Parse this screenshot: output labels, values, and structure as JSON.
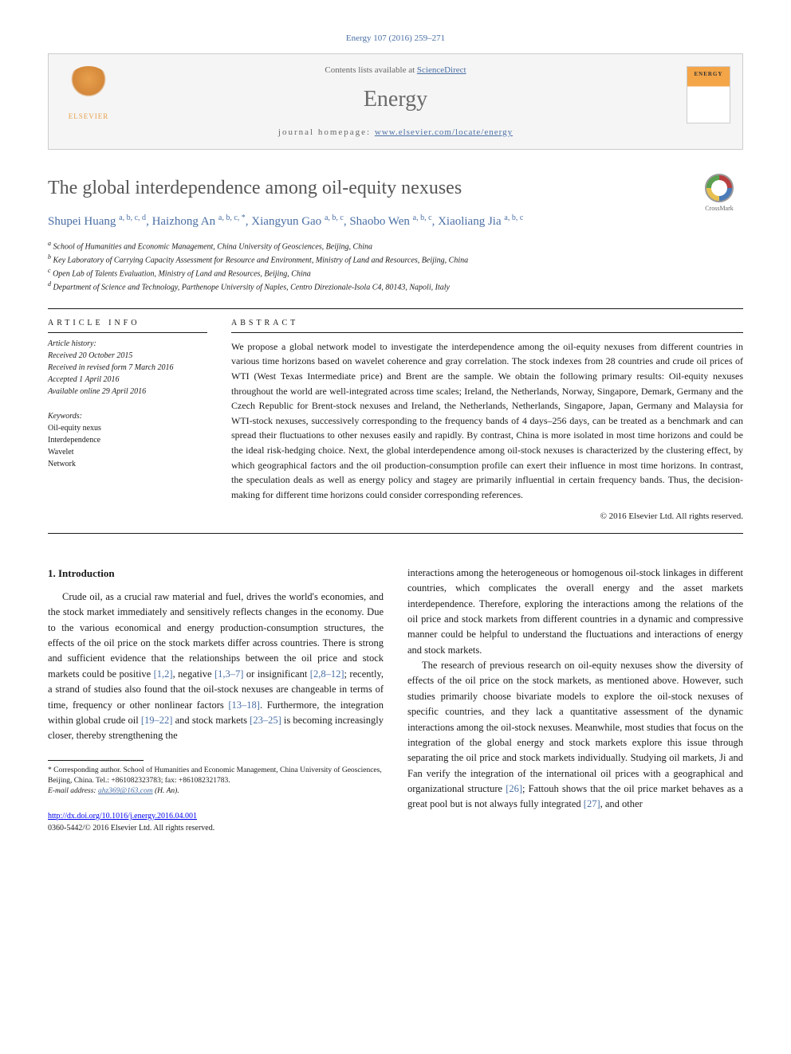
{
  "citation": "Energy 107 (2016) 259–271",
  "header": {
    "contents_prefix": "Contents lists available at ",
    "contents_link": "ScienceDirect",
    "journal": "Energy",
    "homepage_prefix": "journal homepage: ",
    "homepage_url": "www.elsevier.com/locate/energy",
    "publisher_logo": "ELSEVIER",
    "cover_label": "ENERGY"
  },
  "crossmark_label": "CrossMark",
  "title": "The global interdependence among oil-equity nexuses",
  "authors_html": "Shupei Huang <sup>a, b, c, d</sup>, Haizhong An <sup>a, b, c, *</sup>, Xiangyun Gao <sup>a, b, c</sup>, Shaobo Wen <sup>a, b, c</sup>, Xiaoliang Jia <sup>a, b, c</sup>",
  "affiliations": {
    "a": "School of Humanities and Economic Management, China University of Geosciences, Beijing, China",
    "b": "Key Laboratory of Carrying Capacity Assessment for Resource and Environment, Ministry of Land and Resources, Beijing, China",
    "c": "Open Lab of Talents Evaluation, Ministry of Land and Resources, Beijing, China",
    "d": "Department of Science and Technology, Parthenope University of Naples, Centro Direzionale-Isola C4, 80143, Napoli, Italy"
  },
  "article_info_label": "ARTICLE INFO",
  "abstract_label": "ABSTRACT",
  "history_label": "Article history:",
  "history": {
    "received": "Received 20 October 2015",
    "revised": "Received in revised form 7 March 2016",
    "accepted": "Accepted 1 April 2016",
    "online": "Available online 29 April 2016"
  },
  "keywords_label": "Keywords:",
  "keywords": [
    "Oil-equity nexus",
    "Interdependence",
    "Wavelet",
    "Network"
  ],
  "abstract": "We propose a global network model to investigate the interdependence among the oil-equity nexuses from different countries in various time horizons based on wavelet coherence and gray correlation. The stock indexes from 28 countries and crude oil prices of WTI (West Texas Intermediate price) and Brent are the sample. We obtain the following primary results: Oil-equity nexuses throughout the world are well-integrated across time scales; Ireland, the Netherlands, Norway, Singapore, Demark, Germany and the Czech Republic for Brent-stock nexuses and Ireland, the Netherlands, Netherlands, Singapore, Japan, Germany and Malaysia for WTI-stock nexuses, successively corresponding to the frequency bands of 4 days–256 days, can be treated as a benchmark and can spread their fluctuations to other nexuses easily and rapidly. By contrast, China is more isolated in most time horizons and could be the ideal risk-hedging choice. Next, the global interdependence among oil-stock nexuses is characterized by the clustering effect, by which geographical factors and the oil production-consumption profile can exert their influence in most time horizons. In contrast, the speculation deals as well as energy policy and stagey are primarily influential in certain frequency bands. Thus, the decision-making for different time horizons could consider corresponding references.",
  "copyright": "© 2016 Elsevier Ltd. All rights reserved.",
  "section1_heading": "1. Introduction",
  "body": {
    "col1_p1_a": "Crude oil, as a crucial raw material and fuel, drives the world's economies, and the stock market immediately and sensitively reflects changes in the economy. Due to the various economical and energy production-consumption structures, the effects of the oil price on the stock markets differ across countries. There is strong and sufficient evidence that the relationships between the oil price and stock markets could be positive ",
    "ref1": "[1,2]",
    "col1_p1_b": ", negative ",
    "ref2": "[1,3–7]",
    "col1_p1_c": " or insignificant ",
    "ref3": "[2,8–12]",
    "col1_p1_d": "; recently, a strand of studies also found that the oil-stock nexuses are changeable in terms of time, frequency or other nonlinear factors ",
    "ref4": "[13–18]",
    "col1_p1_e": ". Furthermore, the integration within global crude oil ",
    "ref5": "[19–22]",
    "col1_p1_f": " and stock markets ",
    "ref6": "[23–25]",
    "col1_p1_g": " is becoming increasingly closer, thereby strengthening the",
    "col2_p1": "interactions among the heterogeneous or homogenous oil-stock linkages in different countries, which complicates the overall energy and the asset markets interdependence. Therefore, exploring the interactions among the relations of the oil price and stock markets from different countries in a dynamic and compressive manner could be helpful to understand the fluctuations and interactions of energy and stock markets.",
    "col2_p2_a": "The research of previous research on oil-equity nexuses show the diversity of effects of the oil price on the stock markets, as mentioned above. However, such studies primarily choose bivariate models to explore the oil-stock nexuses of specific countries, and they lack a quantitative assessment of the dynamic interactions among the oil-stock nexuses. Meanwhile, most studies that focus on the integration of the global energy and stock markets explore this issue through separating the oil price and stock markets individually. Studying oil markets, Ji and Fan verify the integration of the international oil prices with a geographical and organizational structure ",
    "ref7": "[26]",
    "col2_p2_b": "; Fattouh shows that the oil price market behaves as a great pool but is not always fully integrated ",
    "ref8": "[27]",
    "col2_p2_c": ", and other"
  },
  "footnote": {
    "corresponding": "* Corresponding author. School of Humanities and Economic Management, China University of Geosciences, Beijing, China. Tel.: +861082323783; fax: +861082321783.",
    "email_label": "E-mail address:",
    "email": "ahz369@163.com",
    "email_suffix": "(H. An)."
  },
  "doi": "http://dx.doi.org/10.1016/j.energy.2016.04.001",
  "issn": "0360-5442/© 2016 Elsevier Ltd. All rights reserved."
}
